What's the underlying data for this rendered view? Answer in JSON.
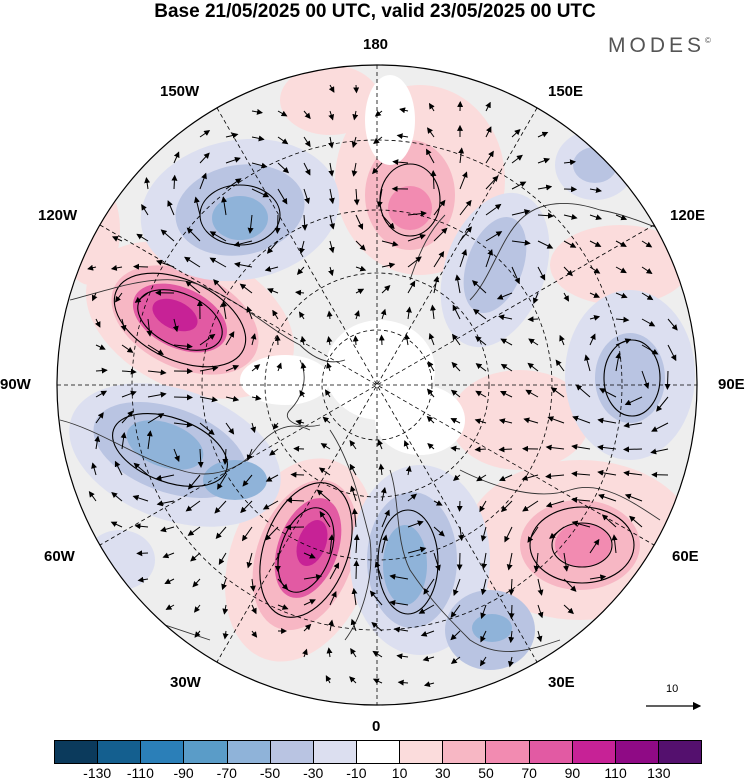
{
  "title": "Base 21/05/2025 00 UTC, valid 23/05/2025 00 UTC",
  "brand": "MODES",
  "brand_mark": "©",
  "map": {
    "projection": "north-polar-stereographic",
    "longitude_labels": {
      "top": "180",
      "top_right": "150E",
      "right_upper": "120E",
      "right": "90E",
      "right_lower": "60E",
      "bottom_right": "30E",
      "bottom": "0",
      "bottom_left": "30W",
      "left_lower": "60W",
      "left": "90W",
      "left_upper": "120W",
      "top_left": "150W"
    },
    "features": [
      "coastlines",
      "graticule",
      "shaded-anomaly",
      "contours",
      "wind-vectors"
    ]
  },
  "reference_vector": {
    "label": "10"
  },
  "colorbar": {
    "colors": [
      "#0b3a5c",
      "#145f8f",
      "#2b7fb8",
      "#5a9cc8",
      "#8fb3d9",
      "#b9c4e2",
      "#dcdff0",
      "#ffffff",
      "#fbdcdc",
      "#f7b7c4",
      "#f28bb1",
      "#e25aa3",
      "#c72296",
      "#8f0a85",
      "#54106e"
    ],
    "ticks": [
      "-130",
      "-110",
      "-90",
      "-70",
      "-50",
      "-30",
      "-10",
      "10",
      "30",
      "50",
      "70",
      "90",
      "110",
      "130"
    ]
  }
}
